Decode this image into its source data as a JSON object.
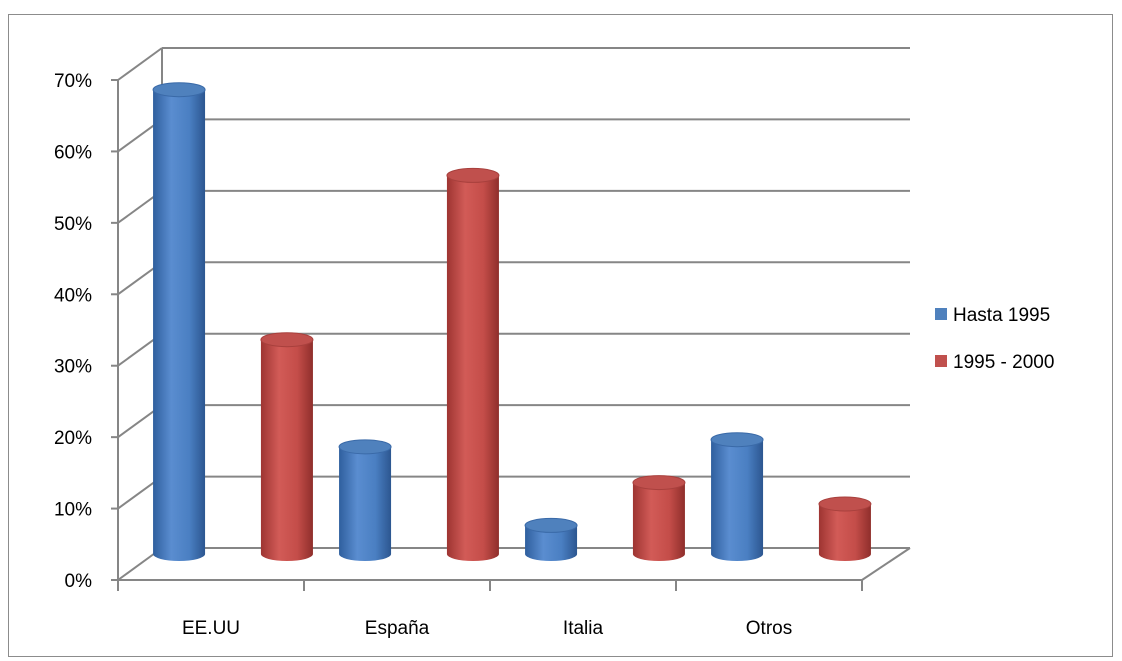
{
  "chart_data": {
    "type": "bar",
    "subtype": "3d-cylinder-clustered",
    "title": "",
    "xlabel": "",
    "ylabel": "",
    "categories": [
      "EE.UU",
      "España",
      "Italia",
      "Otros"
    ],
    "series": [
      {
        "name": "Hasta 1995",
        "values": [
          0.65,
          0.15,
          0.04,
          0.16
        ],
        "color": "#4f81bd"
      },
      {
        "name": "1995 - 2000",
        "values": [
          0.3,
          0.53,
          0.1,
          0.07
        ],
        "color": "#c0504d"
      }
    ],
    "ylim": [
      0,
      0.7
    ],
    "yticks": [
      0,
      0.1,
      0.2,
      0.3,
      0.4,
      0.5,
      0.6,
      0.7
    ],
    "ytick_labels": [
      "0%",
      "10%",
      "20%",
      "30%",
      "40%",
      "50%",
      "60%",
      "70%"
    ],
    "grid": true,
    "legend": "right"
  }
}
